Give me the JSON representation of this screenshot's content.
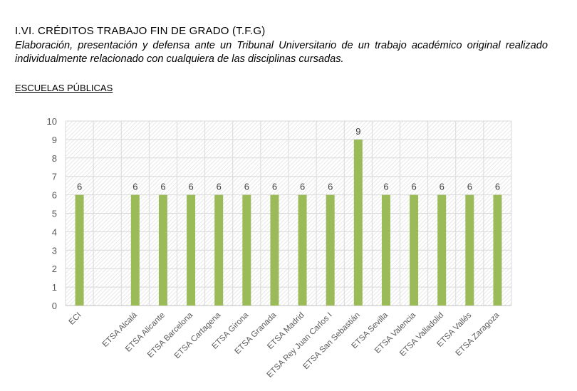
{
  "header": {
    "title": "I.VI. CRÉDITOS TRABAJO FIN DE GRADO (T.F.G)",
    "description": "Elaboración, presentación y defensa ante un Tribunal Universitario de un trabajo académico original realizado individualmente relacionado con cualquiera de las disciplinas cursadas.",
    "section": "ESCUELAS PÚBLICAS"
  },
  "chart_data": {
    "type": "bar",
    "title": "",
    "xlabel": "",
    "ylabel": "",
    "ylim": [
      0,
      10
    ],
    "yticks": [
      "0",
      "1",
      "2",
      "3",
      "4",
      "5",
      "6",
      "7",
      "8",
      "9",
      "10"
    ],
    "grid": true,
    "categories": [
      "ECI",
      "",
      "ETSA Alcalá",
      "ETSA Alicante",
      "ETSA Barcelona",
      "ETSA Cartagena",
      "ETSA Girona",
      "ETSA Granada",
      "ETSA Madrid",
      "ETSA Rey Juan Carlos I",
      "ETSA San Sebastián",
      "ETSA Sevilla",
      "ETSA Valencia",
      "ETSA Valladolid",
      "ETSA Vallés",
      "ETSA Zaragoza"
    ],
    "values": [
      6,
      null,
      6,
      6,
      6,
      6,
      6,
      6,
      6,
      6,
      9,
      6,
      6,
      6,
      6,
      6
    ],
    "bar_color": "#9bbb59"
  }
}
